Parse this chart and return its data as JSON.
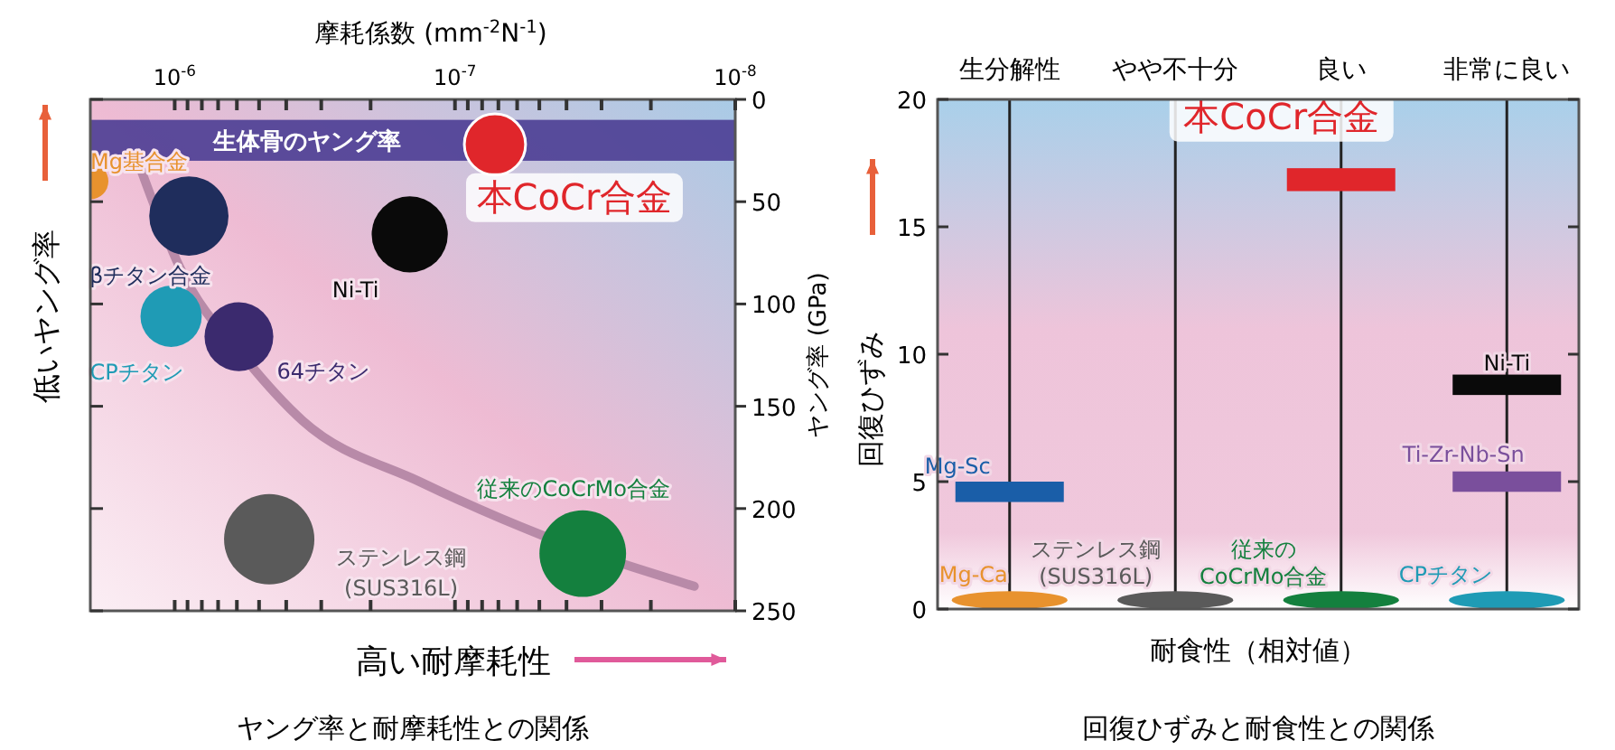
{
  "chart_data": [
    {
      "type": "bubble",
      "title": "ヤング率と耐摩耗性との関係",
      "xlabel": "摩耗係数 (mm$^{-2}$N$^{-1}$)",
      "ylabel": "ヤング率 (GPa)",
      "log": "x",
      "xlim": [
        2e-06,
        1e-08
      ],
      "xticks": [
        {
          "value": 1e-06,
          "label": "10$^{-6}$"
        },
        {
          "value": 9e-07,
          "label": null
        },
        {
          "value": 8e-07,
          "label": null
        },
        {
          "value": 7e-07,
          "label": null
        },
        {
          "value": 6e-07,
          "label": null
        },
        {
          "value": 5e-07,
          "label": null
        },
        {
          "value": 4e-07,
          "label": null
        },
        {
          "value": 3e-07,
          "label": null
        },
        {
          "value": 2e-07,
          "label": null
        },
        {
          "value": 1e-07,
          "label": "10$^{-7}$"
        },
        {
          "value": 9e-08,
          "label": null
        },
        {
          "value": 8e-08,
          "label": null
        },
        {
          "value": 7e-08,
          "label": null
        },
        {
          "value": 6e-08,
          "label": null
        },
        {
          "value": 5e-08,
          "label": null
        },
        {
          "value": 4e-08,
          "label": null
        },
        {
          "value": 3e-08,
          "label": null
        },
        {
          "value": 2e-08,
          "label": null
        },
        {
          "value": 1e-08,
          "label": "10$^{-8}$"
        }
      ],
      "ylim": [
        250,
        0
      ],
      "yticks": [
        0,
        50,
        100,
        150,
        200,
        250
      ],
      "legend": false,
      "bands": [
        {
          "axis": "y",
          "from": 10,
          "to": 30,
          "label": "生体骨のヤング率",
          "color": "#4b3d93"
        }
      ],
      "annotations": [
        "低いヤング率",
        "高い耐摩耗性"
      ],
      "series": [
        {
          "type": "line",
          "color": "#b88aa8",
          "x": [
            1.33e-06,
            9.6e-07,
            5.5e-07,
            3.5e-07,
            1.33e-07,
            4.9e-08,
            1.4e-08
          ],
          "values": [
            33,
            82,
            128,
            157,
            187,
            213,
            238
          ]
        },
        {
          "name": "本CoCr合金",
          "color": "#e0262b",
          "x": [
            7.2e-08
          ],
          "values": [
            22
          ],
          "sizes": [
            0.46
          ]
        },
        {
          "name": "Mg基合金",
          "color": "#e8922e",
          "x": [
            2e-06
          ],
          "values": [
            40
          ],
          "sizes": [
            0.16
          ]
        },
        {
          "name": "βチタン合金",
          "color": "#1f2d5c",
          "x": [
            8.9e-07
          ],
          "values": [
            57
          ],
          "sizes": [
            0.77
          ]
        },
        {
          "name": "Ni-Ti",
          "color": "#0a0a0a",
          "x": [
            1.45e-07
          ],
          "values": [
            66
          ],
          "sizes": [
            0.71
          ]
        },
        {
          "name": "CPチタン",
          "color": "#1f9bb5",
          "x": [
            1.03e-06
          ],
          "values": [
            106
          ],
          "sizes": [
            0.46
          ]
        },
        {
          "name": "64チタン",
          "color": "#3b2a6e",
          "x": [
            5.9e-07
          ],
          "values": [
            116
          ],
          "sizes": [
            0.58
          ]
        },
        {
          "name": "ステンレス鋼\n(SUS316L)",
          "color": "#5a5a5a",
          "x": [
            4.6e-07
          ],
          "values": [
            215
          ],
          "sizes": [
            1
          ]
        },
        {
          "name": "従来のCoCrMo合金",
          "color": "#14803e",
          "x": [
            3.5e-08
          ],
          "values": [
            222
          ],
          "sizes": [
            0.92
          ]
        }
      ]
    },
    {
      "type": "bar",
      "title": "回復ひずみと耐食性との関係",
      "xlabel": "耐食性（相対値）",
      "ylabel": "回復ひずみ",
      "categories": [
        "生分解性",
        "やや不十分",
        "良い",
        "非常に良い"
      ],
      "ylim": [
        0,
        20
      ],
      "yticks": [
        0,
        5,
        10,
        15,
        20
      ],
      "grid": "x",
      "legend": false,
      "series": [
        {
          "name": "本CoCr合金",
          "color": "#e0262b",
          "values": [
            null,
            null,
            0.9,
            null
          ],
          "base": [
            null,
            null,
            16.4,
            null
          ]
        },
        {
          "name": "Ni-Ti",
          "color": "#0a0a0a",
          "values": [
            null,
            null,
            null,
            0.8
          ],
          "base": [
            null,
            null,
            null,
            8.4
          ]
        },
        {
          "name": "Mg-Sc",
          "color": "#1a5ea8",
          "values": [
            0.8,
            null,
            null,
            null
          ],
          "base": [
            4.2,
            null,
            null,
            null
          ]
        },
        {
          "name": "Ti-Zr-Nb-Sn",
          "color": "#7a4f9c",
          "values": [
            null,
            null,
            null,
            0.8
          ],
          "base": [
            null,
            null,
            null,
            4.6
          ]
        },
        {
          "name": "Mg-Ca",
          "color": "#e8922e",
          "values": [
            0.7,
            null,
            null,
            null
          ],
          "base": [
            0,
            null,
            null,
            null
          ]
        },
        {
          "name": "ステンレス鋼\n(SUS316L)",
          "color": "#5a5a5a",
          "values": [
            null,
            0.7,
            null,
            null
          ],
          "base": [
            null,
            0,
            null,
            null
          ]
        },
        {
          "name": "従来の\nCoCrMo合金",
          "color": "#14803e",
          "values": [
            null,
            null,
            0.7,
            null
          ],
          "base": [
            null,
            null,
            0,
            null
          ]
        },
        {
          "name": "CPチタン",
          "color": "#1f9bb5",
          "values": [
            null,
            null,
            null,
            0.7
          ],
          "base": [
            null,
            null,
            null,
            0
          ]
        }
      ]
    }
  ]
}
